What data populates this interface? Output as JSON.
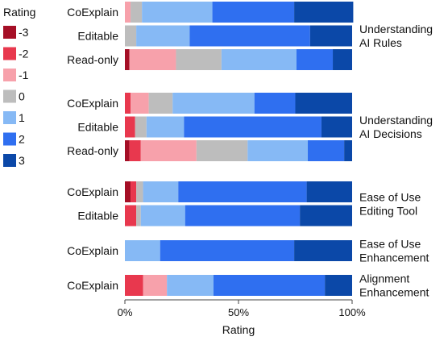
{
  "chart_data": {
    "type": "bar",
    "orientation": "horizontal",
    "stacked": true,
    "normalized": true,
    "xlabel": "Rating",
    "xlim": [
      0,
      100
    ],
    "x_ticks": [
      "0%",
      "50%",
      "100%"
    ],
    "legend": {
      "title": "Rating",
      "placement": "left",
      "entries": [
        "-3",
        "-2",
        "-1",
        "0",
        "1",
        "2",
        "3"
      ]
    },
    "colors": [
      "#a50f26",
      "#e8384e",
      "#f7a1ab",
      "#bdbdbd",
      "#86b9f5",
      "#2f6ff0",
      "#0b48a8"
    ],
    "groups": [
      {
        "label_lines": [
          "Understanding",
          "AI Rules"
        ],
        "rows": [
          {
            "label": "CoExplain",
            "values": [
              0,
              0,
              2.5,
              5,
              31,
              36,
              26
            ]
          },
          {
            "label": "Editable",
            "values": [
              0,
              0,
              0,
              5,
              23.5,
              53,
              18.5
            ]
          },
          {
            "label": "Read-only",
            "values": [
              2,
              0,
              20.5,
              20,
              33,
              16,
              8.5
            ]
          }
        ]
      },
      {
        "label_lines": [
          "Understanding",
          "AI Decisions"
        ],
        "rows": [
          {
            "label": "CoExplain",
            "values": [
              0,
              2.5,
              8,
              10.5,
              36,
              18,
              25
            ]
          },
          {
            "label": "Editable",
            "values": [
              0,
              4.5,
              0,
              5,
              16.5,
              60.5,
              13.5
            ]
          },
          {
            "label": "Read-only",
            "values": [
              2,
              5,
              24.5,
              22.5,
              26.5,
              16,
              3.5
            ]
          }
        ]
      },
      {
        "label_lines": [
          "Ease of Use",
          "Editing Tool"
        ],
        "rows": [
          {
            "label": "CoExplain",
            "values": [
              2.5,
              2.5,
              0,
              3,
              15.5,
              56.5,
              20
            ]
          },
          {
            "label": "Editable",
            "values": [
              0,
              5,
              0,
              2,
              19.5,
              50.5,
              23
            ]
          }
        ]
      },
      {
        "label_lines": [
          "Ease of Use",
          "Enhancement"
        ],
        "rows": [
          {
            "label": "CoExplain",
            "values": [
              0,
              0,
              0,
              0,
              15.5,
              59,
              25.5
            ]
          }
        ]
      },
      {
        "label_lines": [
          "Alignment",
          "Enhancement"
        ],
        "rows": [
          {
            "label": "CoExplain",
            "values": [
              0,
              8,
              10.5,
              0,
              20.5,
              49,
              12
            ]
          }
        ]
      }
    ]
  }
}
